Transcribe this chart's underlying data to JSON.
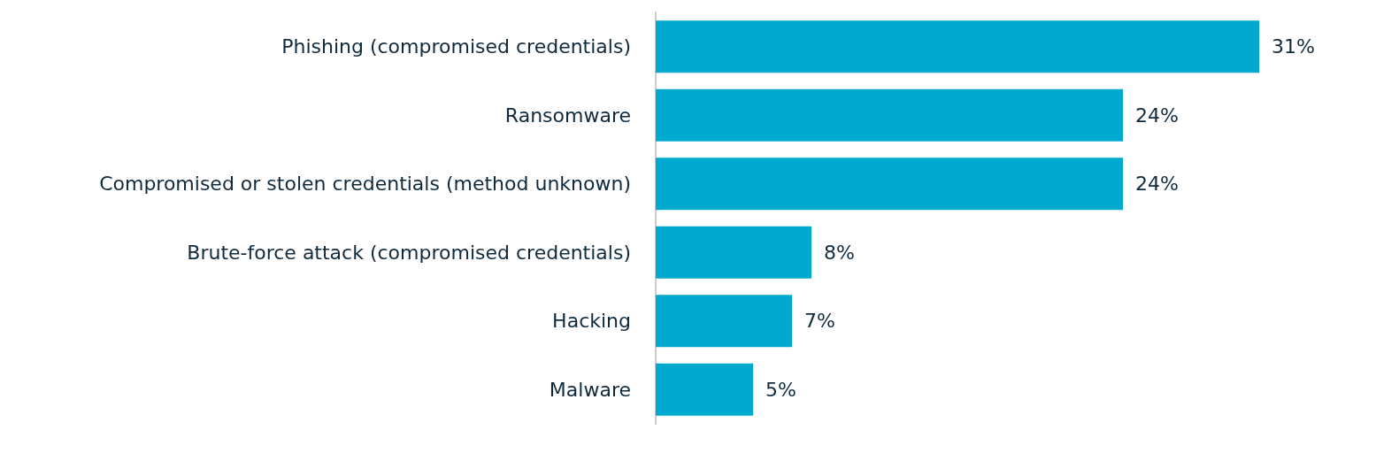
{
  "chart_data": {
    "type": "bar",
    "orientation": "horizontal",
    "categories": [
      "Phishing (compromised credentials)",
      "Ransomware",
      "Compromised or stolen credentials (method unknown)",
      "Brute-force attack (compromised credentials)",
      "Hacking",
      "Malware"
    ],
    "values": [
      31,
      24,
      24,
      8,
      7,
      5
    ],
    "color": "#00a9ce",
    "value_labels": [
      "31%",
      "24%",
      "24%",
      "8%",
      "7%",
      "5%"
    ]
  }
}
